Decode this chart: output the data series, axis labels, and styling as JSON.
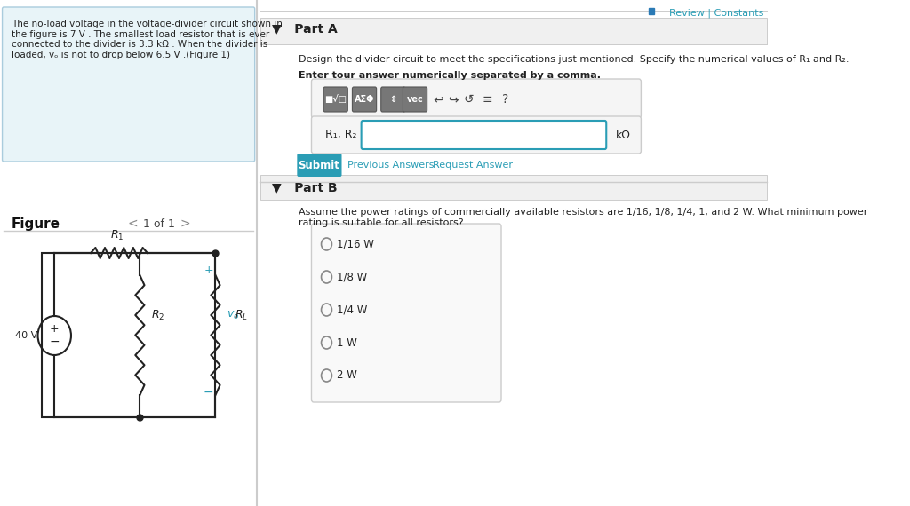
{
  "bg_color": "#ffffff",
  "left_panel_bg": "#e8f4f8",
  "left_panel_text": "The no-load voltage in the voltage-divider circuit shown in\nthe figure is 7 V . The smallest load resistor that is ever\nconnected to the divider is 3.3 kΩ . When the divider is\nloaded, vₒ is not to drop below 6.5 V .(Figure 1)",
  "left_panel_link": "(Figure 1)",
  "figure_label": "Figure",
  "nav_text": "1 of 1",
  "top_right_text": "Review | Constants",
  "part_a_label": "▼   Part A",
  "part_a_desc": "Design the divider circuit to meet the specifications just mentioned. Specify the numerical values of R₁ and R₂.",
  "part_a_bold": "Enter tour answer numerically separated by a comma.",
  "input_label": "R₁, R₂ =",
  "input_unit": "kΩ",
  "toolbar_buttons": [
    "■√□",
    "ΑΣΦ",
    "↑↓",
    "vec",
    "↩",
    "↪",
    "↺",
    "≡",
    "?"
  ],
  "submit_label": "Submit",
  "prev_answers": "Previous Answers",
  "request_answer": "Request Answer",
  "part_b_label": "▼   Part B",
  "part_b_desc": "Assume the power ratings of commercially available resistors are 1/16, 1/8, 1/4, 1, and 2 W. What minimum power\nrating is suitable for all resistors?",
  "radio_options": [
    "1/16 W",
    "1/8 W",
    "1/4 W",
    "1 W",
    "2 W"
  ],
  "divider_color": "#cccccc",
  "left_panel_border": "#aaccdd",
  "submit_bg": "#2a9db5",
  "submit_text_color": "#ffffff",
  "link_color": "#2a9db5",
  "toolbar_bg": "#888888",
  "input_border_color": "#2a9db5",
  "part_header_bg": "#f0f0f0",
  "radio_box_bg": "#f9f9f9",
  "radio_box_border": "#cccccc",
  "review_color": "#2a9db5"
}
